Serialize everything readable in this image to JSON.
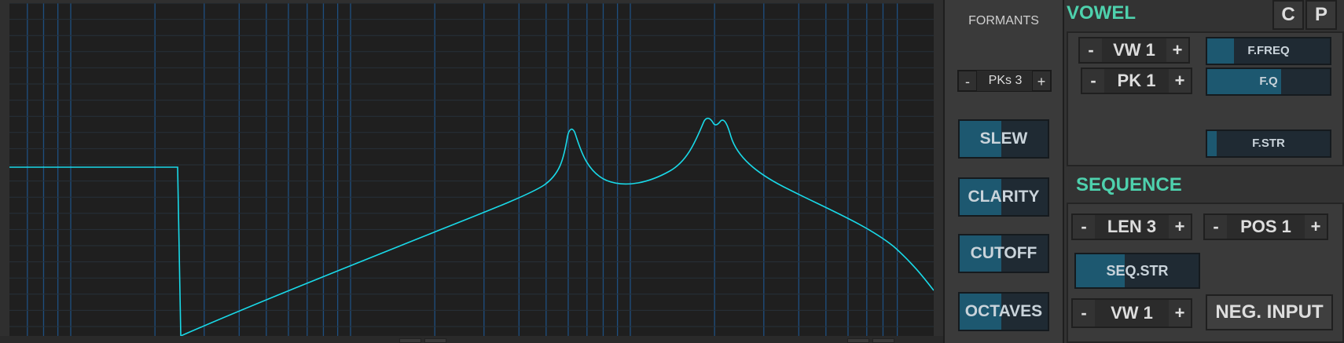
{
  "graph": {
    "description_curve_color": "#19d9e8",
    "grid_color": "#1e4f80",
    "background": "#1f1f1f"
  },
  "formants": {
    "title": "FORMANTS",
    "peaks": {
      "minus": "-",
      "value": "PKs 3",
      "plus": "+"
    },
    "sliders": [
      {
        "label": "SLEW",
        "level": 0.47
      },
      {
        "label": "CLARITY",
        "level": 0.47
      },
      {
        "label": "CUTOFF",
        "level": 0.47
      },
      {
        "label": "OCTAVES",
        "level": 0.47
      }
    ]
  },
  "vowel": {
    "title": "VOWEL",
    "buttons": {
      "c": "C",
      "p": "P"
    },
    "vw_stepper": {
      "minus": "-",
      "value": "VW 1",
      "plus": "+"
    },
    "pk_stepper": {
      "minus": "-",
      "value": "PK 1",
      "plus": "+"
    },
    "sliders": [
      {
        "label": "F.FREQ",
        "level": 0.22
      },
      {
        "label": "F.Q",
        "level": 0.6
      },
      {
        "label": "F.STR",
        "level": 0.08
      }
    ]
  },
  "sequence": {
    "title": "SEQUENCE",
    "len_stepper": {
      "minus": "-",
      "value": "LEN 3",
      "plus": "+"
    },
    "pos_stepper": {
      "minus": "-",
      "value": "POS 1",
      "plus": "+"
    },
    "seq_str": {
      "label": "SEQ.STR",
      "level": 0.4
    },
    "vw_stepper": {
      "minus": "-",
      "value": "VW 1",
      "plus": "+"
    },
    "neg_input": "NEG. INPUT"
  },
  "colors": {
    "accent": "#4ed1ad",
    "slider_fill": "#1d5870",
    "slider_bg": "#1f2a33"
  }
}
